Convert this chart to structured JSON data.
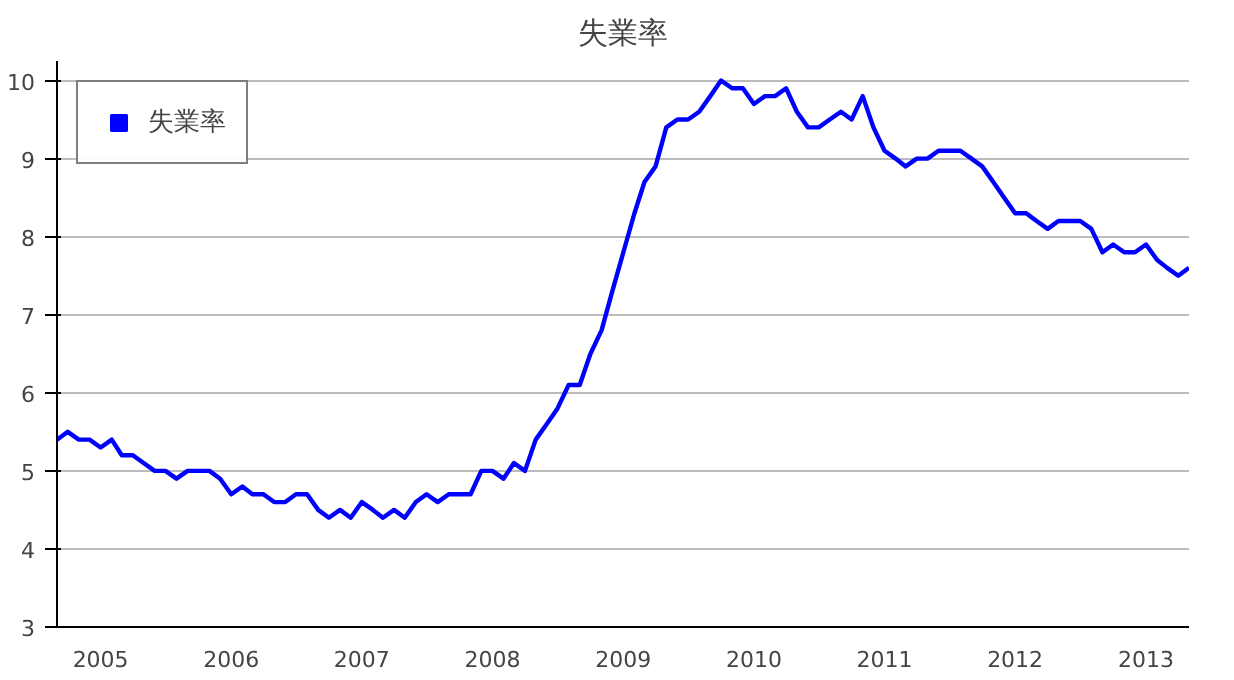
{
  "chart_data": {
    "type": "line",
    "title": "失業率",
    "x": [
      "2004-09",
      "2004-10",
      "2004-11",
      "2004-12",
      "2005-01",
      "2005-02",
      "2005-03",
      "2005-04",
      "2005-05",
      "2005-06",
      "2005-07",
      "2005-08",
      "2005-09",
      "2005-10",
      "2005-11",
      "2005-12",
      "2006-01",
      "2006-02",
      "2006-03",
      "2006-04",
      "2006-05",
      "2006-06",
      "2006-07",
      "2006-08",
      "2006-09",
      "2006-10",
      "2006-11",
      "2006-12",
      "2007-01",
      "2007-02",
      "2007-03",
      "2007-04",
      "2007-05",
      "2007-06",
      "2007-07",
      "2007-08",
      "2007-09",
      "2007-10",
      "2007-11",
      "2007-12",
      "2008-01",
      "2008-02",
      "2008-03",
      "2008-04",
      "2008-05",
      "2008-06",
      "2008-07",
      "2008-08",
      "2008-09",
      "2008-10",
      "2008-11",
      "2008-12",
      "2009-01",
      "2009-02",
      "2009-03",
      "2009-04",
      "2009-05",
      "2009-06",
      "2009-07",
      "2009-08",
      "2009-09",
      "2009-10",
      "2009-11",
      "2009-12",
      "2010-01",
      "2010-02",
      "2010-03",
      "2010-04",
      "2010-05",
      "2010-06",
      "2010-07",
      "2010-08",
      "2010-09",
      "2010-10",
      "2010-11",
      "2010-12",
      "2011-01",
      "2011-02",
      "2011-03",
      "2011-04",
      "2011-05",
      "2011-06",
      "2011-07",
      "2011-08",
      "2011-09",
      "2011-10",
      "2011-11",
      "2011-12",
      "2012-01",
      "2012-02",
      "2012-03",
      "2012-04",
      "2012-05",
      "2012-06",
      "2012-07",
      "2012-08",
      "2012-09",
      "2012-10",
      "2012-11",
      "2012-12",
      "2013-01",
      "2013-02",
      "2013-03",
      "2013-04",
      "2013-05"
    ],
    "series": [
      {
        "name": "失業率",
        "color": "#0000ff",
        "values": [
          5.4,
          5.5,
          5.4,
          5.4,
          5.3,
          5.4,
          5.2,
          5.2,
          5.1,
          5.0,
          5.0,
          4.9,
          5.0,
          5.0,
          5.0,
          4.9,
          4.7,
          4.8,
          4.7,
          4.7,
          4.6,
          4.6,
          4.7,
          4.7,
          4.5,
          4.4,
          4.5,
          4.4,
          4.6,
          4.5,
          4.4,
          4.5,
          4.4,
          4.6,
          4.7,
          4.6,
          4.7,
          4.7,
          4.7,
          5.0,
          5.0,
          4.9,
          5.1,
          5.0,
          5.4,
          5.6,
          5.8,
          6.1,
          6.1,
          6.5,
          6.8,
          7.3,
          7.8,
          8.3,
          8.7,
          8.9,
          9.4,
          9.5,
          9.5,
          9.6,
          9.8,
          10.0,
          9.9,
          9.9,
          9.7,
          9.8,
          9.8,
          9.9,
          9.6,
          9.4,
          9.4,
          9.5,
          9.6,
          9.5,
          9.8,
          9.4,
          9.1,
          9.0,
          8.9,
          9.0,
          9.0,
          9.1,
          9.1,
          9.1,
          9.0,
          8.9,
          8.7,
          8.5,
          8.3,
          8.3,
          8.2,
          8.1,
          8.2,
          8.2,
          8.2,
          8.1,
          7.8,
          7.9,
          7.8,
          7.8,
          7.9,
          7.7,
          7.6,
          7.5,
          7.6
        ]
      }
    ],
    "xlim": [
      "2004-09",
      "2013-05"
    ],
    "xticks": [
      {
        "value": "2005-01",
        "label": "2005"
      },
      {
        "value": "2006-01",
        "label": "2006"
      },
      {
        "value": "2007-01",
        "label": "2007"
      },
      {
        "value": "2008-01",
        "label": "2008"
      },
      {
        "value": "2009-01",
        "label": "2009"
      },
      {
        "value": "2010-01",
        "label": "2010"
      },
      {
        "value": "2011-01",
        "label": "2011"
      },
      {
        "value": "2012-01",
        "label": "2012"
      },
      {
        "value": "2013-01",
        "label": "2013"
      }
    ],
    "ylim": [
      3,
      10.25
    ],
    "yticks": [
      3,
      4,
      5,
      6,
      7,
      8,
      9,
      10
    ],
    "grid": "y",
    "legend": "top left",
    "line_style": "solid"
  }
}
